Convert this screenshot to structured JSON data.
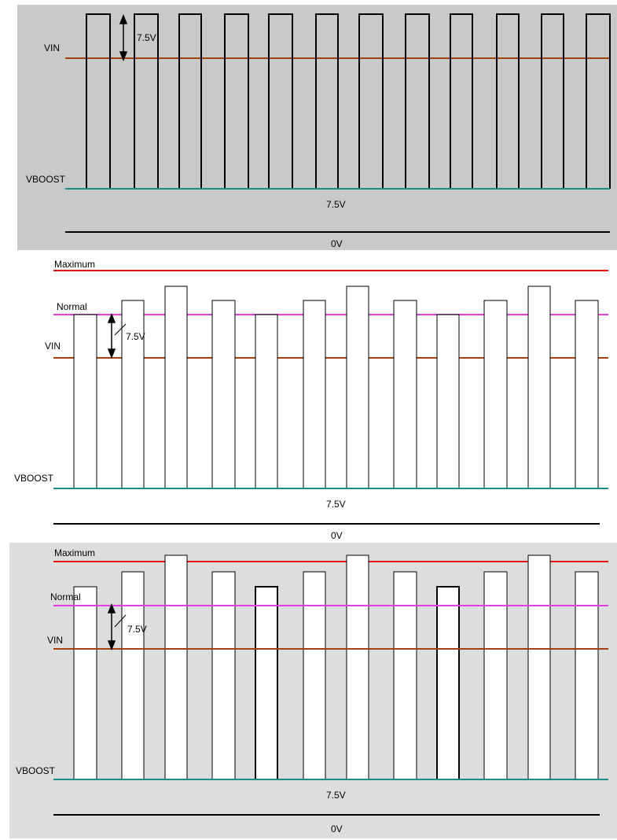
{
  "colors": {
    "panel1_bg": "#c9c9c9",
    "panel2_bg": "#ffffff",
    "panel3_bg": "#dddddd",
    "vin": "#a0410e",
    "vboost": "#1f8b8b",
    "maximum": "#e41414",
    "normal": "#e23ee2",
    "ground": "#000000",
    "pulse_fill": "#ffffff",
    "stroke": "#000000"
  },
  "panels": [
    {
      "labels": {
        "vin": "VIN",
        "vboost": "VBOOST",
        "mid_voltage": "7.5V",
        "zero_voltage": "0V",
        "step": "7.5V"
      }
    },
    {
      "labels": {
        "maximum": "Maximum",
        "normal": "Normal",
        "vin": "VIN",
        "vboost": "VBOOST",
        "mid_voltage": "7.5V",
        "zero_voltage": "0V",
        "step": "7.5V"
      }
    },
    {
      "labels": {
        "maximum": "Maximum",
        "normal": "Normal",
        "vin": "VIN",
        "vboost": "VBOOST",
        "mid_voltage": "7.5V",
        "zero_voltage": "0V",
        "step": "7.5V"
      }
    }
  ]
}
